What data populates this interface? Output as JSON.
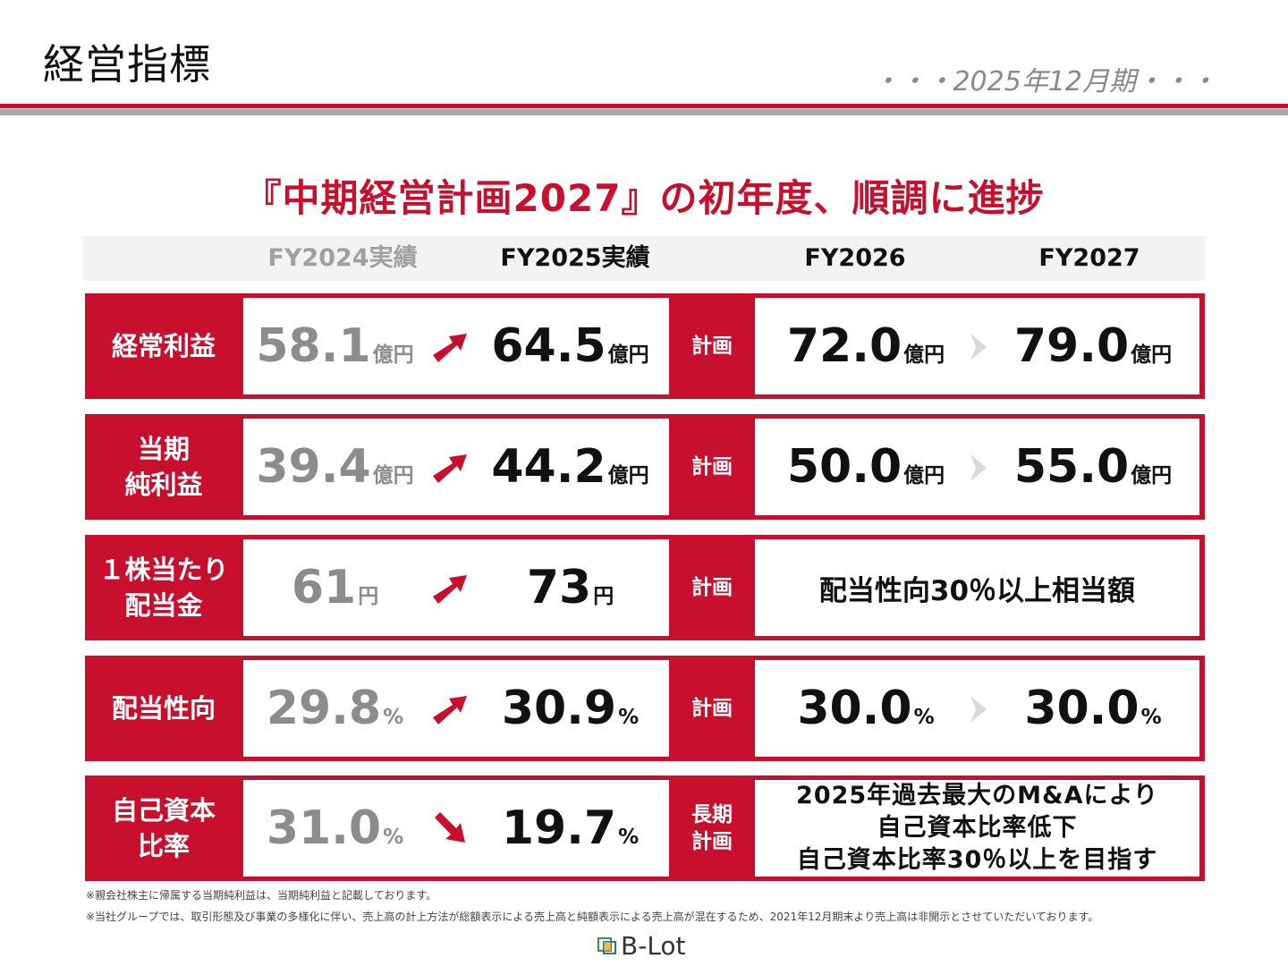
{
  "header": {
    "title": "経営指標",
    "period": "・・・2025年12月期・・・"
  },
  "headline": "『中期経営計画2027』の初年度、順調に進捗",
  "columns": {
    "fy2024": "FY2024実績",
    "fy2025": "FY2025実績",
    "fy2026": "FY2026",
    "fy2027": "FY2027"
  },
  "rows": [
    {
      "label": "経常利益",
      "fy2024": {
        "value": "58.1",
        "unit": "億円"
      },
      "trend": "up",
      "fy2025": {
        "value": "64.5",
        "unit": "億円"
      },
      "kind": "計画",
      "fy2026": {
        "value": "72.0",
        "unit": "億円"
      },
      "fy2027": {
        "value": "79.0",
        "unit": "億円"
      }
    },
    {
      "label": "当期\n純利益",
      "fy2024": {
        "value": "39.4",
        "unit": "億円"
      },
      "trend": "up",
      "fy2025": {
        "value": "44.2",
        "unit": "億円"
      },
      "kind": "計画",
      "fy2026": {
        "value": "50.0",
        "unit": "億円"
      },
      "fy2027": {
        "value": "55.0",
        "unit": "億円"
      }
    },
    {
      "label": "１株当たり\n配当金",
      "fy2024": {
        "value": "61",
        "unit": "円"
      },
      "trend": "up",
      "fy2025": {
        "value": "73",
        "unit": "円"
      },
      "kind": "計画",
      "plan_text": "配当性向30％以上相当額"
    },
    {
      "label": "配当性向",
      "fy2024": {
        "value": "29.8",
        "unit": "%"
      },
      "trend": "up",
      "fy2025": {
        "value": "30.9",
        "unit": "%"
      },
      "kind": "計画",
      "fy2026": {
        "value": "30.0",
        "unit": "%"
      },
      "fy2027": {
        "value": "30.0",
        "unit": "%"
      }
    },
    {
      "label": "自己資本\n比率",
      "fy2024": {
        "value": "31.0",
        "unit": "%"
      },
      "trend": "down",
      "fy2025": {
        "value": "19.7",
        "unit": "%"
      },
      "kind": "長期\n計画",
      "plan_lines": [
        "2025年過去最大のM&Aにより",
        "自己資本比率低下",
        "自己資本比率30％以上を目指す"
      ]
    }
  ],
  "notes": [
    "※親会社株主に帰属する当期純利益は、当期純利益と記載しております。",
    "※当社グループでは、取引形態及び事業の多様化に伴い、売上高の計上方法が総額表示による売上高と純額表示による売上高が混在するため、2021年12月期末より売上高は非開示とさせていただいております。"
  ],
  "logo": {
    "text": "B-Lot"
  },
  "colors": {
    "accent": "#c8102e",
    "muted": "#8c8c8c"
  },
  "icons": {
    "up": "arrow-up-right-icon",
    "down": "arrow-down-right-icon",
    "next": "chevron-right-icon"
  }
}
